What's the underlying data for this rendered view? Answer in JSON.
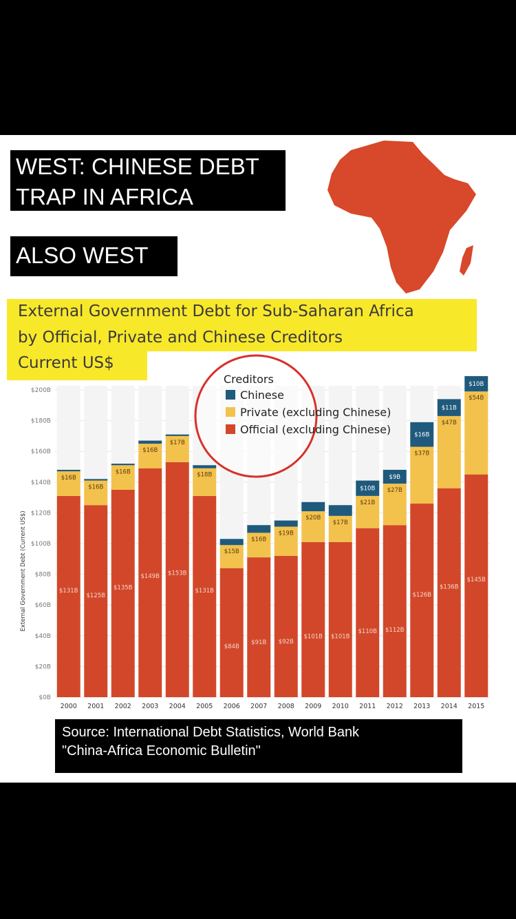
{
  "captions": {
    "west": "WEST: CHINESE DEBT TRAP IN AFRICA",
    "also_west": "ALSO WEST"
  },
  "source": {
    "line1": "Source: International Debt Statistics, World Bank",
    "line2": "\"China-Africa Economic Bulletin\""
  },
  "chart_data": {
    "type": "bar",
    "stacked": true,
    "title_lines": [
      "External Government Debt for Sub-Saharan Africa",
      "by Official, Private and Chinese Creditors",
      "Current US$"
    ],
    "title": "External Government Debt for Sub-Saharan Africa by Official, Private and Chinese Creditors",
    "subtitle": "Current US$",
    "ylabel": "External Government Debt (Current US$)",
    "xlabel": "",
    "ylim": [
      0,
      200
    ],
    "y_ticks": [
      0,
      20,
      40,
      60,
      80,
      100,
      120,
      140,
      160,
      180,
      200
    ],
    "y_tick_labels": [
      "$0B",
      "$20B",
      "$40B",
      "$60B",
      "$80B",
      "$100B",
      "$120B",
      "$140B",
      "$160B",
      "$180B",
      "$200B"
    ],
    "categories": [
      "2000",
      "2001",
      "2002",
      "2003",
      "2004",
      "2005",
      "2006",
      "2007",
      "2008",
      "2009",
      "2010",
      "2011",
      "2012",
      "2013",
      "2014",
      "2015"
    ],
    "legend_title": "Creditors",
    "legend_position": "top-center",
    "grid": true,
    "series": [
      {
        "name": "Official (excluding Chinese)",
        "color": "#d2472a",
        "values": [
          131,
          125,
          135,
          149,
          153,
          131,
          84,
          91,
          92,
          101,
          101,
          110,
          112,
          126,
          136,
          145
        ],
        "labels": [
          "$131B",
          "$125B",
          "$135B",
          "$149B",
          "$153B",
          "$131B",
          "$84B",
          "$91B",
          "$92B",
          "$101B",
          "$101B",
          "$110B",
          "$112B",
          "$126B",
          "$136B",
          "$145B"
        ]
      },
      {
        "name": "Private (excluding Chinese)",
        "color": "#f3c24c",
        "values": [
          16,
          16,
          16,
          16,
          17,
          18,
          15,
          16,
          19,
          20,
          17,
          21,
          27,
          37,
          47,
          54
        ],
        "labels": [
          "$16B",
          "$16B",
          "$16B",
          "$16B",
          "$17B",
          "$18B",
          "$15B",
          "$16B",
          "$19B",
          "$20B",
          "$17B",
          "$21B",
          "$27B",
          "$37B",
          "$47B",
          "$54B"
        ]
      },
      {
        "name": "Chinese",
        "color": "#1f5a7c",
        "values": [
          1,
          1,
          1,
          2,
          1,
          2,
          4,
          5,
          4,
          6,
          7,
          10,
          9,
          16,
          11,
          10
        ],
        "labels": [
          "",
          "",
          "",
          "",
          "",
          "",
          "",
          "",
          "",
          "",
          "",
          "$10B",
          "$9B",
          "$16B",
          "$11B",
          "$10B"
        ]
      }
    ]
  },
  "colors": {
    "africa": "#d8482a",
    "highlight": "#f8e82a",
    "circle": "#d8302a",
    "bar_bg": "#f4f4f4"
  }
}
